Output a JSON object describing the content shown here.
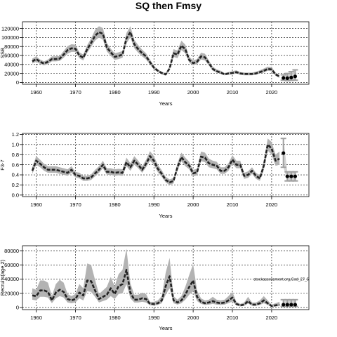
{
  "title": "SQ then Fmsy",
  "chart_data": [
    {
      "type": "line",
      "name": "panel-ssb",
      "xlabel": "Years",
      "ylabel": "SSB",
      "xlim": [
        1956.5,
        2029.5
      ],
      "ylim": [
        -4000,
        135000
      ],
      "xticks": [
        1960,
        1970,
        1980,
        1990,
        2000,
        2010,
        2020
      ],
      "yticks": [
        0,
        20000,
        40000,
        60000,
        80000,
        100000,
        120000
      ],
      "grid": true,
      "history": {
        "x": [
          1959,
          1960,
          1961,
          1962,
          1963,
          1964,
          1965,
          1966,
          1967,
          1968,
          1969,
          1970,
          1971,
          1972,
          1973,
          1974,
          1975,
          1976,
          1977,
          1978,
          1979,
          1980,
          1981,
          1982,
          1983,
          1984,
          1985,
          1986,
          1987,
          1988,
          1989,
          1990,
          1991,
          1992,
          1993,
          1994,
          1995,
          1996,
          1997,
          1998,
          1999,
          2000,
          2001,
          2002,
          2003,
          2004,
          2005,
          2006,
          2007,
          2008,
          2009,
          2010,
          2011,
          2012,
          2013,
          2014,
          2015,
          2016,
          2017,
          2018,
          2019,
          2020,
          2021,
          2022
        ],
        "y": [
          47000,
          52000,
          46000,
          42000,
          46000,
          52000,
          52000,
          53000,
          62000,
          72000,
          76000,
          75000,
          60000,
          55000,
          74000,
          88000,
          104000,
          112000,
          108000,
          78000,
          67000,
          57000,
          59000,
          62000,
          98000,
          112000,
          85000,
          74000,
          65000,
          58000,
          45000,
          33000,
          26000,
          21000,
          18000,
          31000,
          65000,
          62000,
          82000,
          74000,
          50000,
          43000,
          46000,
          58000,
          56000,
          43000,
          30000,
          25000,
          22000,
          18000,
          20000,
          21000,
          23000,
          20000,
          19000,
          19000,
          19000,
          20000,
          23000,
          26000,
          30000,
          29000,
          18000,
          13000
        ],
        "lower": [
          42000,
          46000,
          41000,
          38000,
          41000,
          47000,
          47000,
          48000,
          55000,
          64000,
          68000,
          68000,
          54000,
          49000,
          66000,
          79000,
          93000,
          100000,
          95000,
          69000,
          59000,
          50000,
          52000,
          55000,
          87000,
          100000,
          76000,
          66000,
          58000,
          51000,
          40000,
          29000,
          23000,
          18000,
          15000,
          27000,
          57000,
          54000,
          72000,
          65000,
          44000,
          38000,
          41000,
          51000,
          49000,
          38000,
          26000,
          22000,
          19000,
          16000,
          17000,
          18000,
          20000,
          17000,
          16000,
          16000,
          16000,
          17000,
          20000,
          22000,
          26000,
          25000,
          15000,
          10000
        ],
        "upper": [
          53000,
          58000,
          51000,
          47000,
          51000,
          58000,
          58000,
          59000,
          70000,
          81000,
          85000,
          84000,
          67000,
          62000,
          83000,
          98000,
          117000,
          125000,
          121000,
          88000,
          75000,
          65000,
          67000,
          70000,
          110000,
          125000,
          95000,
          83000,
          73000,
          65000,
          51000,
          37000,
          29000,
          24000,
          21000,
          36000,
          74000,
          71000,
          93000,
          84000,
          57000,
          49000,
          52000,
          66000,
          64000,
          49000,
          35000,
          29000,
          26000,
          21000,
          23000,
          25000,
          27000,
          23000,
          22000,
          22000,
          22000,
          24000,
          27000,
          31000,
          35000,
          34000,
          22000,
          17000
        ]
      },
      "forecast": {
        "x": [
          2023,
          2024,
          2025,
          2026
        ],
        "y": [
          10000,
          9500,
          11000,
          13500
        ],
        "lower": [
          5000,
          4000,
          4500,
          5000
        ],
        "upper": [
          17000,
          20000,
          24000,
          28000
        ]
      }
    },
    {
      "type": "line",
      "name": "panel-f",
      "xlabel": "Years",
      "ylabel": "F3-7",
      "xlim": [
        1956.5,
        2029.5
      ],
      "ylim": [
        -0.03,
        1.22
      ],
      "xticks": [
        1960,
        1970,
        1980,
        1990,
        2000,
        2010,
        2020
      ],
      "yticks": [
        0,
        0.2,
        0.4,
        0.6,
        0.8,
        1.0,
        1.2
      ],
      "ytick_labels": [
        "0.0",
        "0.2",
        "0.4",
        "0.6",
        "0.8",
        "1.0",
        "1.2"
      ],
      "grid": true,
      "history": {
        "x": [
          1959,
          1960,
          1961,
          1962,
          1963,
          1964,
          1965,
          1966,
          1967,
          1968,
          1969,
          1970,
          1971,
          1972,
          1973,
          1974,
          1975,
          1976,
          1977,
          1978,
          1979,
          1980,
          1981,
          1982,
          1983,
          1984,
          1985,
          1986,
          1987,
          1988,
          1989,
          1990,
          1991,
          1992,
          1993,
          1994,
          1995,
          1996,
          1997,
          1998,
          1999,
          2000,
          2001,
          2002,
          2003,
          2004,
          2005,
          2006,
          2007,
          2008,
          2009,
          2010,
          2011,
          2012,
          2013,
          2014,
          2015,
          2016,
          2017,
          2018,
          2019,
          2020,
          2021,
          2022
        ],
        "y": [
          0.48,
          0.68,
          0.62,
          0.55,
          0.5,
          0.5,
          0.5,
          0.48,
          0.46,
          0.44,
          0.5,
          0.4,
          0.38,
          0.33,
          0.33,
          0.35,
          0.43,
          0.5,
          0.6,
          0.46,
          0.46,
          0.44,
          0.45,
          0.44,
          0.65,
          0.55,
          0.68,
          0.6,
          0.5,
          0.62,
          0.77,
          0.68,
          0.52,
          0.42,
          0.3,
          0.25,
          0.28,
          0.55,
          0.75,
          0.65,
          0.58,
          0.43,
          0.45,
          0.76,
          0.74,
          0.63,
          0.6,
          0.58,
          0.48,
          0.48,
          0.55,
          0.7,
          0.6,
          0.6,
          0.38,
          0.4,
          0.48,
          0.38,
          0.33,
          0.58,
          1.0,
          0.92,
          0.68,
          0.72
        ],
        "lower": [
          0.42,
          0.6,
          0.55,
          0.48,
          0.44,
          0.44,
          0.44,
          0.42,
          0.4,
          0.38,
          0.44,
          0.35,
          0.33,
          0.28,
          0.28,
          0.3,
          0.37,
          0.44,
          0.53,
          0.4,
          0.4,
          0.38,
          0.39,
          0.38,
          0.57,
          0.48,
          0.6,
          0.53,
          0.44,
          0.55,
          0.68,
          0.6,
          0.45,
          0.36,
          0.25,
          0.2,
          0.23,
          0.48,
          0.67,
          0.57,
          0.51,
          0.37,
          0.39,
          0.67,
          0.65,
          0.55,
          0.53,
          0.51,
          0.42,
          0.42,
          0.48,
          0.62,
          0.53,
          0.53,
          0.32,
          0.34,
          0.42,
          0.32,
          0.28,
          0.5,
          0.88,
          0.8,
          0.58,
          0.6
        ],
        "upper": [
          0.55,
          0.77,
          0.7,
          0.62,
          0.57,
          0.57,
          0.57,
          0.55,
          0.53,
          0.51,
          0.57,
          0.46,
          0.44,
          0.38,
          0.38,
          0.41,
          0.5,
          0.57,
          0.68,
          0.53,
          0.53,
          0.51,
          0.52,
          0.51,
          0.74,
          0.63,
          0.77,
          0.68,
          0.57,
          0.7,
          0.87,
          0.77,
          0.6,
          0.49,
          0.36,
          0.31,
          0.34,
          0.63,
          0.84,
          0.74,
          0.66,
          0.5,
          0.52,
          0.86,
          0.84,
          0.72,
          0.68,
          0.66,
          0.55,
          0.55,
          0.63,
          0.79,
          0.68,
          0.68,
          0.44,
          0.47,
          0.55,
          0.44,
          0.39,
          0.67,
          1.12,
          1.05,
          0.8,
          0.86
        ]
      },
      "forecast": {
        "x": [
          2023,
          2024,
          2025,
          2026
        ],
        "y": [
          0.83,
          0.37,
          0.37,
          0.37
        ],
        "lower": [
          0.55,
          0.28,
          0.28,
          0.28
        ],
        "upper": [
          1.12,
          0.46,
          0.46,
          0.46
        ]
      }
    },
    {
      "type": "line",
      "name": "panel-recruitment",
      "xlabel": "Years",
      "ylabel": "Recruits(age 2)",
      "xlim": [
        1956.5,
        2029.5
      ],
      "ylim": [
        -3000,
        87000
      ],
      "xticks": [
        1960,
        1970,
        1980,
        1990,
        2000,
        2010,
        2020
      ],
      "yticks": [
        0,
        20000,
        40000,
        60000,
        80000
      ],
      "grid": true,
      "annotation": "stockassessment.org,Cod_27_5",
      "history": {
        "x": [
          1959,
          1960,
          1961,
          1962,
          1963,
          1964,
          1965,
          1966,
          1967,
          1968,
          1969,
          1970,
          1971,
          1972,
          1973,
          1974,
          1975,
          1976,
          1977,
          1978,
          1979,
          1980,
          1981,
          1982,
          1983,
          1984,
          1985,
          1986,
          1987,
          1988,
          1989,
          1990,
          1991,
          1992,
          1993,
          1994,
          1995,
          1996,
          1997,
          1998,
          1999,
          2000,
          2001,
          2002,
          2003,
          2004,
          2005,
          2006,
          2007,
          2008,
          2009,
          2010,
          2011,
          2012,
          2013,
          2014,
          2015,
          2016,
          2017,
          2018,
          2019,
          2020,
          2021,
          2022
        ],
        "y": [
          17000,
          16000,
          24000,
          24000,
          22000,
          10000,
          21000,
          25000,
          22000,
          12000,
          10000,
          12000,
          21000,
          17000,
          38000,
          37000,
          24000,
          12000,
          15000,
          18000,
          27000,
          19000,
          30000,
          33000,
          53000,
          21000,
          11000,
          11000,
          13000,
          12000,
          5000,
          5000,
          6000,
          10000,
          30000,
          44000,
          10000,
          7000,
          10000,
          18000,
          29000,
          38000,
          15000,
          8000,
          6000,
          7000,
          9000,
          7000,
          6000,
          7000,
          10000,
          14000,
          5000,
          3000,
          4000,
          9000,
          4000,
          4000,
          6000,
          10000,
          6000,
          2000,
          3000,
          4000
        ],
        "lower": [
          11000,
          10000,
          15000,
          15000,
          14000,
          6000,
          13000,
          16000,
          14000,
          7000,
          6000,
          7000,
          13000,
          10000,
          23000,
          22000,
          15000,
          7000,
          9000,
          11000,
          16000,
          12000,
          19000,
          20000,
          33000,
          13000,
          7000,
          7000,
          8000,
          7000,
          3000,
          3000,
          3500,
          6000,
          18000,
          27000,
          6000,
          4000,
          6000,
          11000,
          18000,
          23000,
          9000,
          5000,
          3500,
          4000,
          5000,
          4000,
          3500,
          4000,
          6000,
          8500,
          3000,
          1500,
          2500,
          5500,
          2500,
          2500,
          3500,
          6000,
          3500,
          1000,
          1500,
          2000
        ],
        "upper": [
          27000,
          25000,
          38000,
          38000,
          35000,
          16000,
          33000,
          39000,
          35000,
          19000,
          16000,
          19000,
          33000,
          27000,
          62000,
          60000,
          39000,
          19000,
          24000,
          29000,
          43000,
          30000,
          47000,
          53000,
          83000,
          34000,
          18000,
          18000,
          21000,
          19000,
          8000,
          8000,
          10000,
          16000,
          49000,
          70000,
          16000,
          11000,
          16000,
          29000,
          46000,
          61000,
          24000,
          13000,
          10000,
          11000,
          15000,
          11000,
          10000,
          11000,
          16000,
          22000,
          8000,
          5000,
          7000,
          15000,
          7000,
          7000,
          10000,
          16000,
          10000,
          4000,
          6000,
          8000
        ]
      },
      "forecast": {
        "x": [
          2023,
          2024,
          2025,
          2026
        ],
        "y": [
          4000,
          4000,
          4000,
          4000
        ],
        "lower": [
          1500,
          1500,
          1500,
          1500
        ],
        "upper": [
          11000,
          11000,
          11000,
          11000
        ]
      }
    }
  ]
}
